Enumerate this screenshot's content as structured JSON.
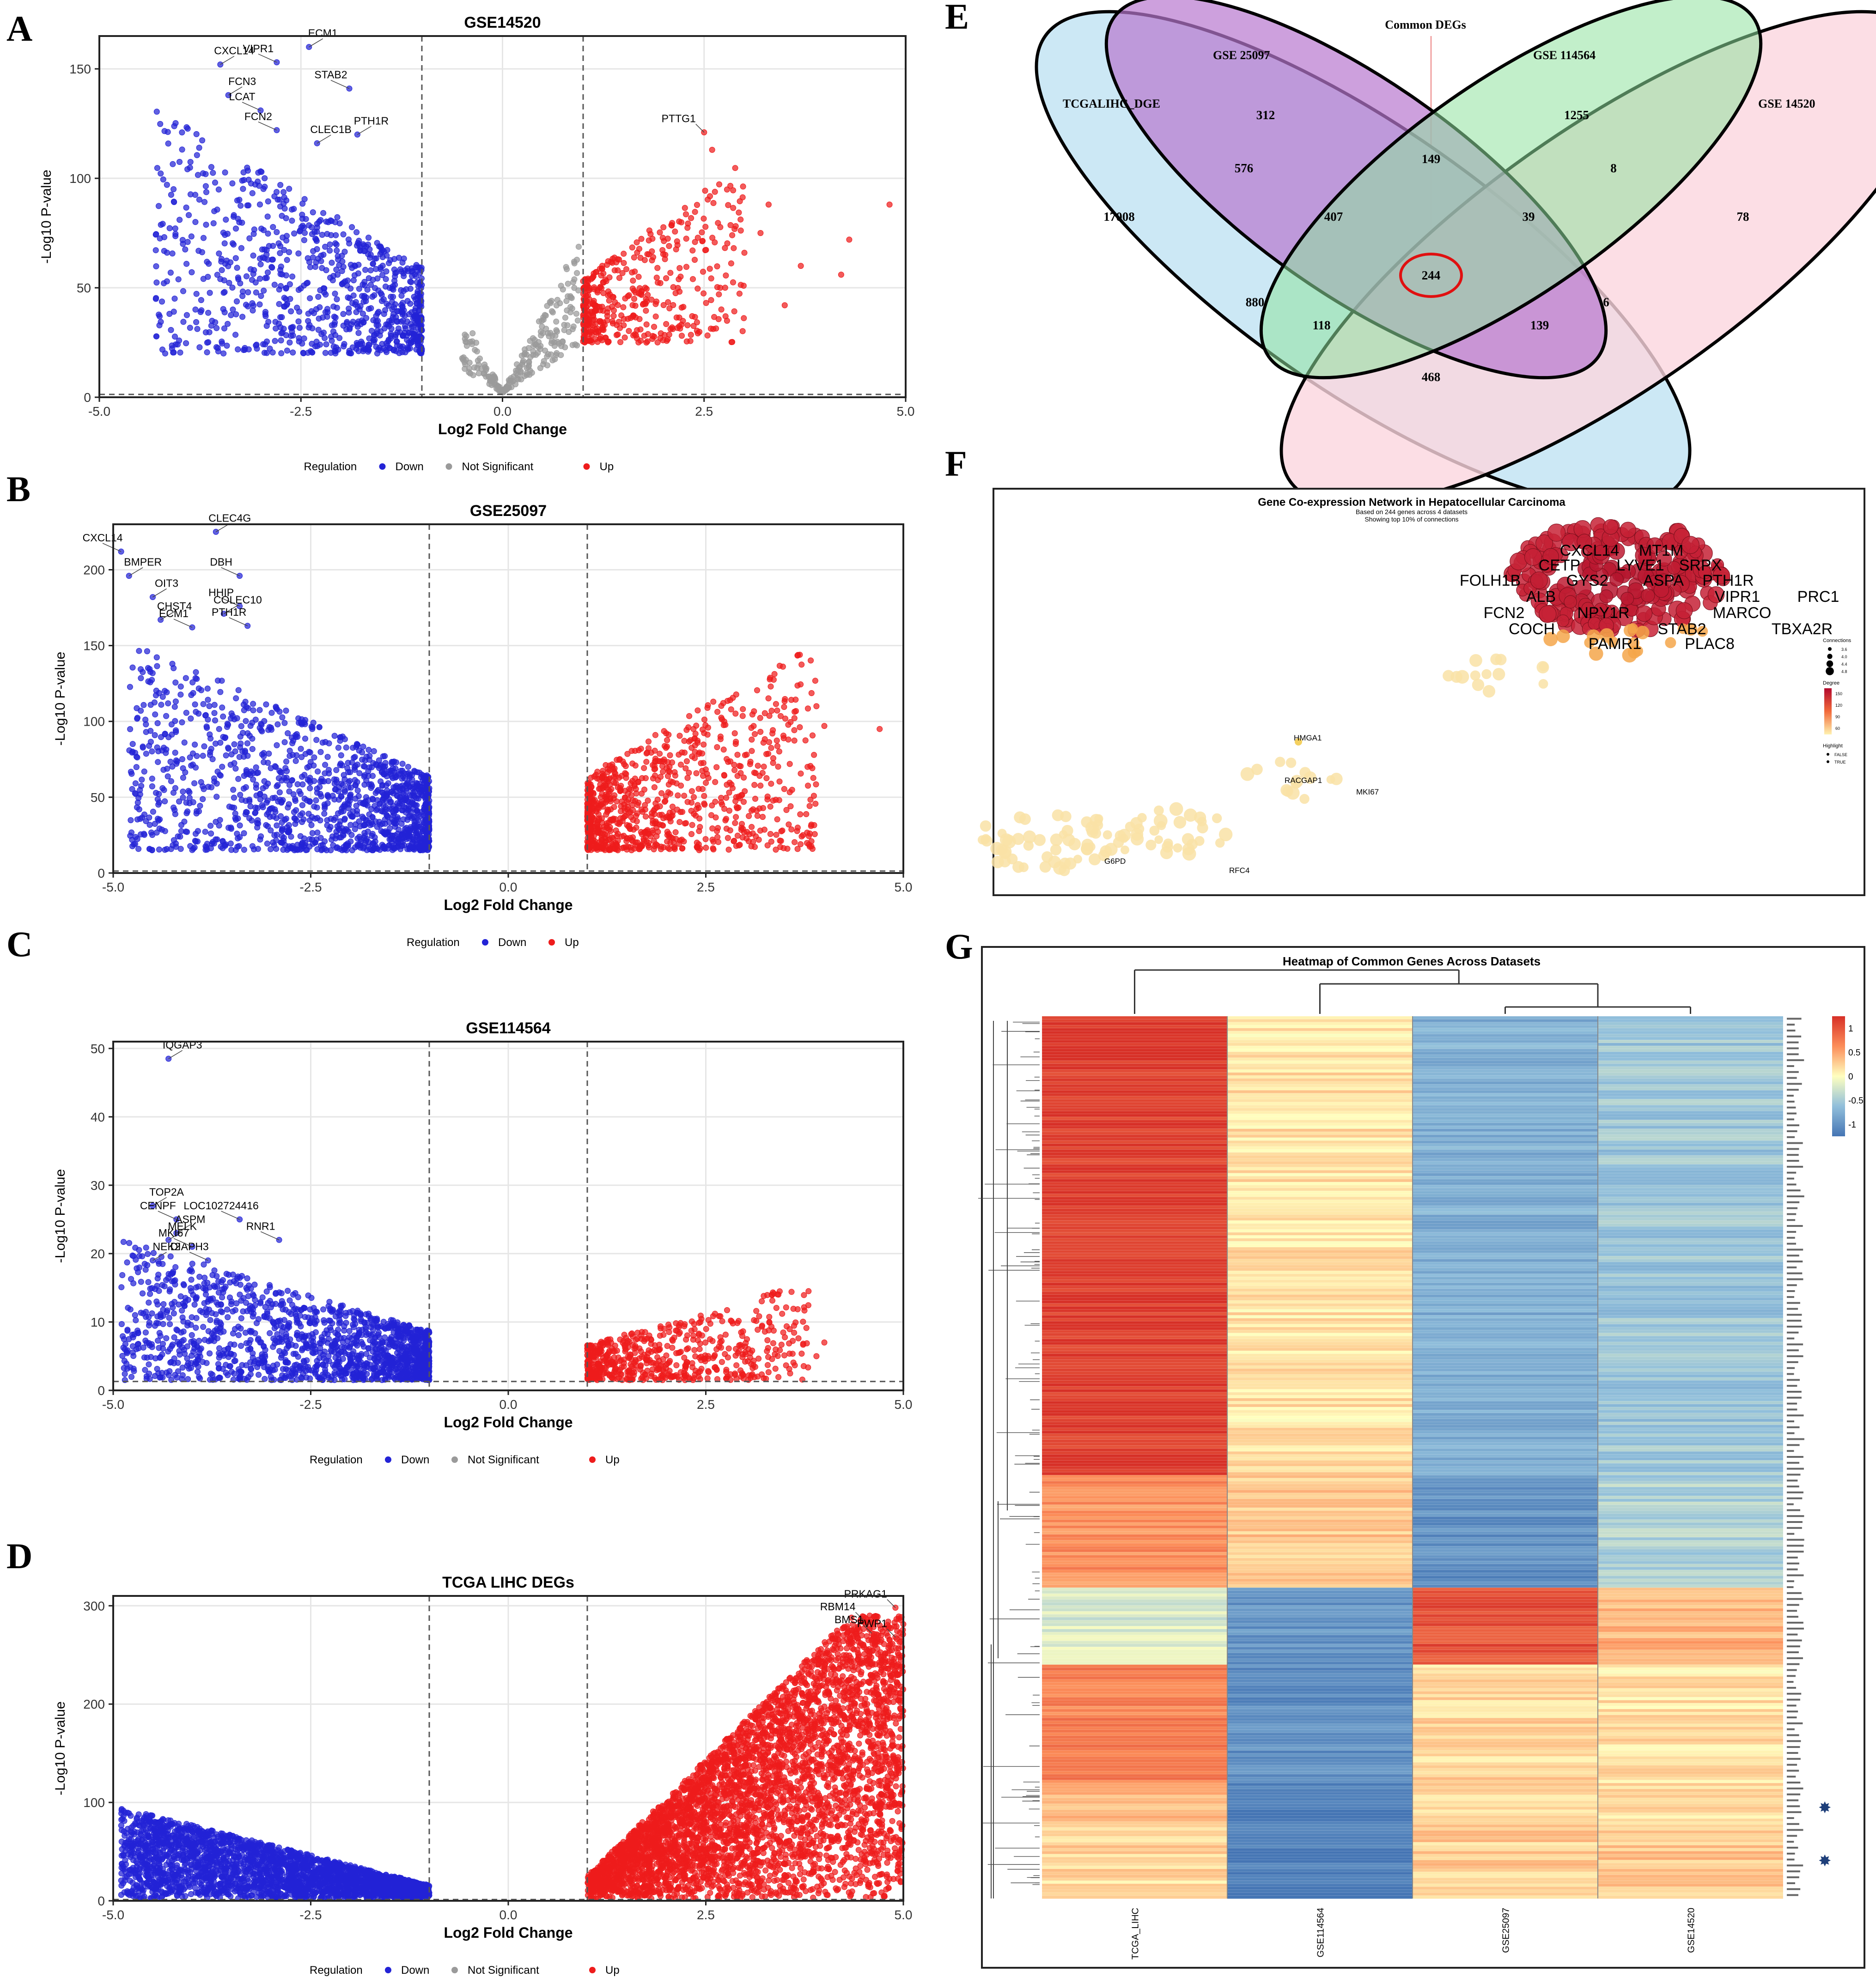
{
  "figure": {
    "panel_letters": [
      "A",
      "B",
      "C",
      "D",
      "E",
      "F",
      "G"
    ],
    "legend_title": "Regulation",
    "legend_down": "Down",
    "legend_ns": "Not Significant",
    "legend_up": "Up"
  },
  "colors": {
    "down": "#2323d6",
    "up": "#ee1c1c",
    "ns": "#9a9a9a",
    "grid": "#e6e6e6",
    "threshold": "#555555",
    "venn_blue": "#c6e6f4",
    "venn_purple": "#d39be0",
    "venn_green": "#b8f0c0",
    "venn_pink": "#fbd6de"
  },
  "chart_data": [
    {
      "id": "A",
      "type": "scatter",
      "title": "GSE14520",
      "xlabel": "Log2 Fold Change",
      "ylabel": "-Log10 P-value",
      "xlim": [
        -5.0,
        5.0
      ],
      "ylim": [
        0,
        165
      ],
      "xticks": [
        -5.0,
        -2.5,
        0.0,
        2.5,
        5.0
      ],
      "xtick_labels": [
        "-5.0",
        "-2.5",
        "0.0",
        "2.5",
        "5.0"
      ],
      "yticks": [
        0,
        50,
        100,
        150
      ],
      "ytick_labels": [
        "0",
        "50",
        "100",
        "150"
      ],
      "vlines": [
        -1,
        1
      ],
      "hline": 1.3,
      "legend": [
        "Down",
        "Not Significant",
        "Up"
      ],
      "labeled_points": [
        {
          "label": "ECM1",
          "x": -2.4,
          "y": 160
        },
        {
          "label": "VIPR1",
          "x": -2.8,
          "y": 153
        },
        {
          "label": "CXCL14",
          "x": -3.5,
          "y": 152
        },
        {
          "label": "STAB2",
          "x": -1.9,
          "y": 141
        },
        {
          "label": "FCN3",
          "x": -3.4,
          "y": 138
        },
        {
          "label": "LCAT",
          "x": -3.0,
          "y": 131
        },
        {
          "label": "PTH1R",
          "x": -1.8,
          "y": 120
        },
        {
          "label": "FCN2",
          "x": -2.8,
          "y": 122
        },
        {
          "label": "CLEC1B",
          "x": -2.3,
          "y": 116
        },
        {
          "label": "PTTG1",
          "x": 2.5,
          "y": 121
        }
      ],
      "down_cluster": {
        "x": [
          -4.3,
          -1.0
        ],
        "y": [
          20,
          132
        ],
        "n": 900
      },
      "ns_cluster": {
        "x": [
          -0.5,
          0.95
        ],
        "y": [
          2,
          72
        ],
        "n": 230
      },
      "up_cluster": {
        "x": [
          1.0,
          3.0
        ],
        "y": [
          25,
          108
        ],
        "n": 430
      },
      "extra_up": [
        {
          "x": 4.8,
          "y": 88
        },
        {
          "x": 4.3,
          "y": 72
        },
        {
          "x": 4.2,
          "y": 56
        },
        {
          "x": 3.7,
          "y": 60
        },
        {
          "x": 3.3,
          "y": 88
        },
        {
          "x": 3.2,
          "y": 75
        },
        {
          "x": 3.5,
          "y": 42
        },
        {
          "x": 2.6,
          "y": 113
        },
        {
          "x": 3.0,
          "y": 66
        },
        {
          "x": 2.7,
          "y": 50
        }
      ]
    },
    {
      "id": "B",
      "type": "scatter",
      "title": "GSE25097",
      "xlabel": "Log2 Fold Change",
      "ylabel": "-Log10 P-value",
      "xlim": [
        -5.0,
        5.0
      ],
      "ylim": [
        0,
        230
      ],
      "xticks": [
        -5.0,
        -2.5,
        0.0,
        2.5,
        5.0
      ],
      "xtick_labels": [
        "-5.0",
        "-2.5",
        "0.0",
        "2.5",
        "5.0"
      ],
      "yticks": [
        0,
        50,
        100,
        150,
        200
      ],
      "ytick_labels": [
        "0",
        "50",
        "100",
        "150",
        "200"
      ],
      "vlines": [
        -1,
        1
      ],
      "hline": 1.3,
      "legend": [
        "Down",
        "Up"
      ],
      "labeled_points": [
        {
          "label": "CLEC4G",
          "x": -3.7,
          "y": 225
        },
        {
          "label": "CXCL14",
          "x": -4.9,
          "y": 212
        },
        {
          "label": "BMPER",
          "x": -4.8,
          "y": 196
        },
        {
          "label": "DBH",
          "x": -3.4,
          "y": 196
        },
        {
          "label": "OIT3",
          "x": -4.5,
          "y": 182
        },
        {
          "label": "HHIP",
          "x": -3.4,
          "y": 176
        },
        {
          "label": "COLEC10",
          "x": -3.6,
          "y": 171
        },
        {
          "label": "PTH1R",
          "x": -3.3,
          "y": 163
        },
        {
          "label": "CHST4",
          "x": -4.4,
          "y": 167
        },
        {
          "label": "ECM1",
          "x": -4.0,
          "y": 162
        }
      ],
      "down_cluster": {
        "x": [
          -4.8,
          -1.0
        ],
        "y": [
          15,
          155
        ],
        "n": 1400
      },
      "up_cluster": {
        "x": [
          1.0,
          3.9
        ],
        "y": [
          15,
          155
        ],
        "n": 900
      },
      "extra_up": [
        {
          "x": 4.7,
          "y": 95
        },
        {
          "x": 4.0,
          "y": 97
        },
        {
          "x": 3.9,
          "y": 110
        }
      ]
    },
    {
      "id": "C",
      "type": "scatter",
      "title": "GSE114564",
      "xlabel": "Log2 Fold Change",
      "ylabel": "-Log10 P-value",
      "xlim": [
        -5.0,
        5.0
      ],
      "ylim": [
        0,
        51
      ],
      "xticks": [
        -5.0,
        -2.5,
        0.0,
        2.5,
        5.0
      ],
      "xtick_labels": [
        "-5.0",
        "-2.5",
        "0.0",
        "2.5",
        "5.0"
      ],
      "yticks": [
        0,
        10,
        20,
        30,
        40,
        50
      ],
      "ytick_labels": [
        "0",
        "10",
        "20",
        "30",
        "40",
        "50"
      ],
      "vlines": [
        -1,
        1
      ],
      "hline": 1.3,
      "legend": [
        "Down",
        "Not Significant",
        "Up"
      ],
      "labeled_points": [
        {
          "label": "IQGAP3",
          "x": -4.3,
          "y": 48.5
        },
        {
          "label": "LOC102724416",
          "x": -3.4,
          "y": 25
        },
        {
          "label": "TOP2A",
          "x": -4.5,
          "y": 27
        },
        {
          "label": "CENPF",
          "x": -4.2,
          "y": 25
        },
        {
          "label": "ASPM",
          "x": -4.2,
          "y": 23
        },
        {
          "label": "RNR1",
          "x": -2.9,
          "y": 22
        },
        {
          "label": "MELK",
          "x": -4.3,
          "y": 22
        },
        {
          "label": "DIAPH3",
          "x": -3.8,
          "y": 19
        },
        {
          "label": "NEK2",
          "x": -4.5,
          "y": 19
        },
        {
          "label": "MKI67",
          "x": -4.0,
          "y": 21
        }
      ],
      "down_cluster": {
        "x": [
          -4.9,
          -1.0
        ],
        "y": [
          1.5,
          22
        ],
        "n": 1500
      },
      "up_cluster": {
        "x": [
          1.0,
          3.8
        ],
        "y": [
          1.5,
          16
        ],
        "n": 600
      },
      "extra_up": [
        {
          "x": 3.8,
          "y": 14.5
        },
        {
          "x": 4.0,
          "y": 7
        },
        {
          "x": 3.9,
          "y": 5
        }
      ]
    },
    {
      "id": "D",
      "type": "scatter",
      "title": "TCGA LIHC DEGs",
      "xlabel": "Log2 Fold Change",
      "ylabel": "-Log10 P-value",
      "xlim": [
        -5.0,
        5.0
      ],
      "ylim": [
        0,
        310
      ],
      "xticks": [
        -5.0,
        -2.5,
        0.0,
        2.5,
        5.0
      ],
      "xtick_labels": [
        "-5.0",
        "-2.5",
        "0.0",
        "2.5",
        "5.0"
      ],
      "yticks": [
        0,
        100,
        200,
        300
      ],
      "ytick_labels": [
        "0",
        "100",
        "200",
        "300"
      ],
      "vlines": [
        -1,
        1
      ],
      "hline": 1.3,
      "legend": [
        "Down",
        "Not Significant",
        "Up"
      ],
      "labeled_points": [
        {
          "label": "PRKAG1",
          "x": 4.9,
          "y": 298
        },
        {
          "label": "RBM14",
          "x": 4.5,
          "y": 285
        },
        {
          "label": "BMS1",
          "x": 4.6,
          "y": 272
        },
        {
          "label": "PWP1",
          "x": 4.9,
          "y": 268
        }
      ],
      "down_cluster": {
        "x": [
          -4.9,
          -1.0
        ],
        "y": [
          2,
          95
        ],
        "n": 2600
      },
      "up_cluster": {
        "x": [
          1.0,
          5.0
        ],
        "y": [
          2,
          290
        ],
        "n": 4200
      }
    },
    {
      "id": "E",
      "type": "venn",
      "title": "Common DEGs",
      "sets": [
        "TCGALIHC_DGE",
        "GSE 25097",
        "GSE 114564",
        "GSE 14520"
      ],
      "regions": [
        17008,
        312,
        1255,
        78,
        576,
        149,
        8,
        407,
        39,
        244,
        880,
        6,
        118,
        139,
        468
      ],
      "highlight": 244
    },
    {
      "id": "F",
      "type": "network",
      "title": "Gene Co-expression Network in Hepatocellular Carcinoma",
      "subtitle1": "Based on 244 genes across 4 datasets",
      "subtitle2": "Showing top 10% of connections",
      "hub_labels": [
        "CXCL14",
        "MT1M",
        "CETP",
        "LYVE1",
        "SRPX",
        "FOLH1B",
        "GYS2",
        "ASPA",
        "PTH1R",
        "ALB",
        "VIPR1",
        "PRC1",
        "FCN2",
        "NPY1R",
        "MARCO",
        "COCH",
        "STAB2",
        "TBXA2R",
        "PAMR1",
        "PLAC8"
      ],
      "small_labels": [
        "HMGA1",
        "RACGAP1",
        "MKI67",
        "G6PD",
        "RFC4"
      ],
      "legend": {
        "connections_title": "Connections",
        "connections_values": [
          "3.6",
          "4.0",
          "4.4",
          "4.8"
        ],
        "degree_title": "Degree",
        "degree_values": [
          "150",
          "120",
          "90",
          "60"
        ],
        "highlight_title": "Highlight",
        "highlight_values": [
          "FALSE",
          "TRUE"
        ]
      }
    },
    {
      "id": "G",
      "type": "heatmap",
      "title": "Heatmap of Common Genes Across Datasets",
      "columns": [
        "TCGA_LIHC",
        "GSE114564",
        "GSE25097",
        "GSE14520"
      ],
      "scale_labels": [
        "1",
        "0.5",
        "0",
        "-0.5",
        "-1"
      ],
      "scale_values": [
        1,
        0.5,
        0,
        -0.5,
        -1
      ],
      "row_blocks": [
        {
          "rows": 155,
          "values": [
            1.2,
            0.15,
            -0.75,
            -0.55
          ]
        },
        {
          "rows": 38,
          "values": [
            0.6,
            0.3,
            -1.05,
            -0.45
          ]
        },
        {
          "rows": 26,
          "values": [
            -0.2,
            -1.0,
            1.05,
            0.4
          ]
        },
        {
          "rows": 40,
          "values": [
            0.7,
            -1.05,
            0.2,
            0.15
          ]
        },
        {
          "rows": 14,
          "values": [
            0.35,
            -1.2,
            0.25,
            0.2
          ]
        },
        {
          "rows": 25,
          "values": [
            0.2,
            -1.25,
            0.25,
            0.3
          ]
        }
      ]
    }
  ]
}
